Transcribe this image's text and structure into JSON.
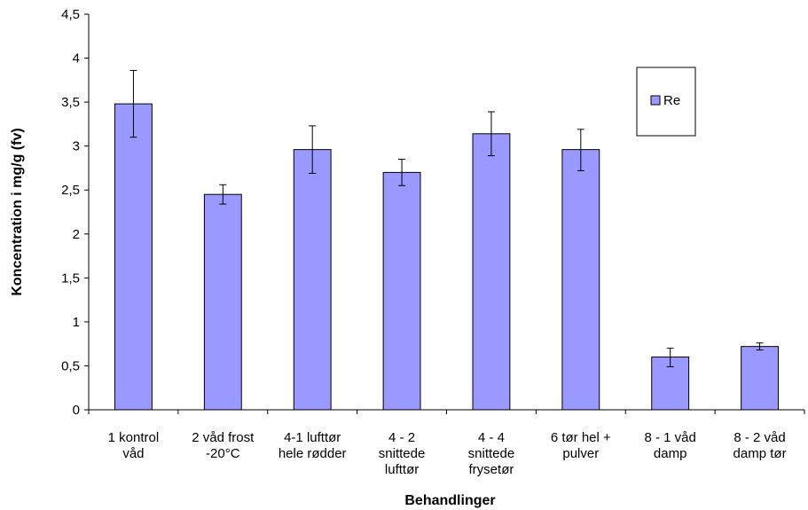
{
  "chart_data": {
    "type": "bar",
    "categories": [
      [
        "1 kontrol",
        "våd"
      ],
      [
        "2 våd frost",
        "-20°C"
      ],
      [
        "4-1 lufttør",
        "hele rødder"
      ],
      [
        "4 - 2",
        "snittede",
        "lufttør"
      ],
      [
        "4 - 4",
        "snittede",
        "frysetør"
      ],
      [
        "6 tør hel +",
        "pulver"
      ],
      [
        "8 - 1 våd",
        "damp"
      ],
      [
        "8 - 2 våd",
        "damp tør"
      ]
    ],
    "series": [
      {
        "name": "Re",
        "color": "#9999ff",
        "values": [
          3.48,
          2.45,
          2.96,
          2.7,
          3.14,
          2.96,
          0.6,
          0.72
        ],
        "err_low": [
          3.1,
          2.34,
          2.69,
          2.55,
          2.89,
          2.72,
          0.49,
          0.68
        ],
        "err_high": [
          3.86,
          2.56,
          3.23,
          2.85,
          3.39,
          3.19,
          0.7,
          0.76
        ]
      }
    ],
    "xlabel": "Behandlinger",
    "ylabel": "Koncentration i mg/g (fv)",
    "ylim": [
      0,
      4.5
    ],
    "yticks": [
      "0",
      "0,5",
      "1",
      "1,5",
      "2",
      "2,5",
      "3",
      "3,5",
      "4",
      "4,5"
    ],
    "grid": false,
    "legend": "top-right-inside"
  }
}
